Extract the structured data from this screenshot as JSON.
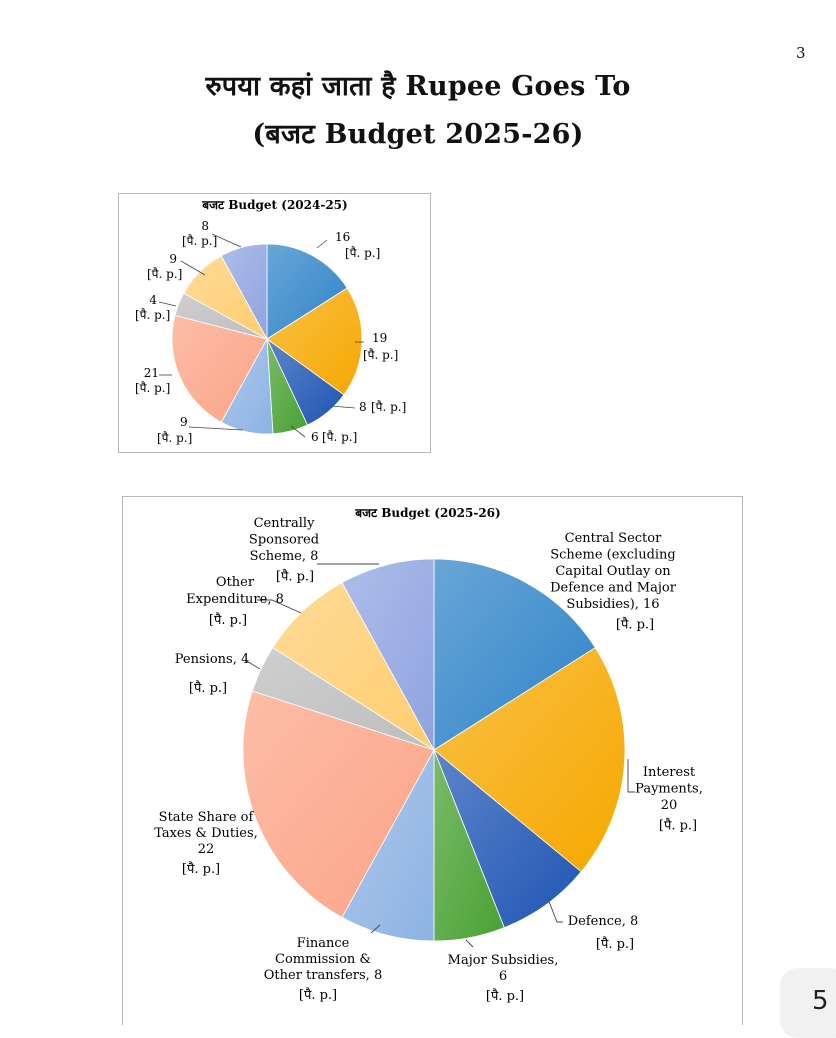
{
  "page_number": "3",
  "header": {
    "title_line1": "रुपया कहां जाता है Rupee Goes To",
    "title_line2": "(बजट  Budget 2025-26)"
  },
  "corner_badge": "5",
  "chart_data": [
    {
      "type": "pie",
      "title": "बजट Budget  (2024-25)",
      "unit_label": "[पै. p.]",
      "slices": [
        {
          "value": 16,
          "color": "#2E83C8"
        },
        {
          "value": 19,
          "color": "#F6A800"
        },
        {
          "value": 8,
          "color": "#1F55B4"
        },
        {
          "value": 6,
          "color": "#48A132"
        },
        {
          "value": 9,
          "color": "#8DB3E3"
        },
        {
          "value": 21,
          "color": "#FBA486"
        },
        {
          "value": 4,
          "color": "#BDBDBD"
        },
        {
          "value": 9,
          "color": "#FFCD70"
        },
        {
          "value": 8,
          "color": "#8FA3E0"
        }
      ],
      "labels": [
        {
          "value": "16",
          "unit": "[पै. p.]"
        },
        {
          "value": "19",
          "unit": "[पै. p.]"
        },
        {
          "value": "8",
          "unit": "[पै. p.]"
        },
        {
          "value": "6",
          "unit": "[पै. p.]"
        },
        {
          "value": "9",
          "unit": "[पै. p.]"
        },
        {
          "value": "21",
          "unit": "[पै. p.]"
        },
        {
          "value": "4",
          "unit": "[पै. p.]"
        },
        {
          "value": "9",
          "unit": "[पै. p.]"
        },
        {
          "value": "8",
          "unit": "[पै. p.]"
        }
      ]
    },
    {
      "type": "pie",
      "title": "बजट Budget  (2025-26)",
      "unit_label": "[पै. p.]",
      "slices": [
        {
          "name": "Central Sector Scheme (excluding Capital Outlay on Defence and Major Subsidies)",
          "value": 16,
          "color": "#2E83C8"
        },
        {
          "name": "Interest Payments",
          "value": 20,
          "color": "#F6A800"
        },
        {
          "name": "Defence",
          "value": 8,
          "color": "#1F55B4"
        },
        {
          "name": "Major Subsidies",
          "value": 6,
          "color": "#48A132"
        },
        {
          "name": "Finance Commission & Other transfers",
          "value": 8,
          "color": "#8DB3E3"
        },
        {
          "name": "State Share of Taxes & Duties",
          "value": 22,
          "color": "#FBA486"
        },
        {
          "name": "Pensions",
          "value": 4,
          "color": "#BDBDBD"
        },
        {
          "name": "Other Expenditure",
          "value": 8,
          "color": "#FFCD70"
        },
        {
          "name": "Centrally Sponsored Scheme",
          "value": 8,
          "color": "#8FA3E0"
        }
      ],
      "labels": [
        {
          "lines": [
            "Central Sector",
            "Scheme (excluding",
            "Capital Outlay on",
            "Defence and Major",
            "Subsidies), 16",
            "[पै. p.]"
          ]
        },
        {
          "lines": [
            "Interest",
            "Payments,",
            "20",
            "[पै. p.]"
          ]
        },
        {
          "lines": [
            "Defence, 8",
            "[पै. p.]"
          ]
        },
        {
          "lines": [
            "Major Subsidies,",
            "6",
            "[पै. p.]"
          ]
        },
        {
          "lines": [
            "Finance",
            "Commission &",
            "Other transfers, 8",
            "[पै. p.]"
          ]
        },
        {
          "lines": [
            "State Share of",
            "Taxes & Duties,",
            "22",
            "[पै. p.]"
          ]
        },
        {
          "lines": [
            "Pensions, 4",
            "[पै. p.]"
          ]
        },
        {
          "lines": [
            "Other",
            "Expenditure, 8",
            "[पै. p.]"
          ]
        },
        {
          "lines": [
            "Centrally",
            "Sponsored",
            "Scheme, 8",
            "[पै. p.]"
          ]
        }
      ]
    }
  ]
}
